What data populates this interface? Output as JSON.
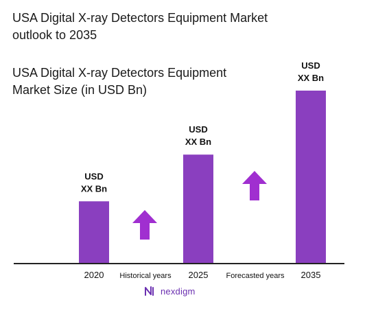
{
  "title": "USA Digital X-ray Detectors Equipment Market\noutlook to 2035",
  "subtitle": "USA Digital X-ray Detectors Equipment\nMarket Size (in USD Bn)",
  "colors": {
    "bar": "#8a3fbf",
    "arrow": "#a02fd0",
    "axis": "#222222",
    "brand": "#6a2fb0"
  },
  "periods": {
    "historical": "Historical years",
    "forecast": "Forecasted years"
  },
  "brand": {
    "name": "nexdigm",
    "logo_icon": "nexdigm-logo-icon"
  },
  "chart_data": {
    "type": "bar",
    "categories": [
      "2020",
      "2025",
      "2035"
    ],
    "values": [
      0.36,
      0.63,
      1.0
    ],
    "value_labels": [
      "USD\nXX Bn",
      "USD\nXX Bn",
      "USD\nXX Bn"
    ],
    "ylim": [
      0,
      1.0
    ],
    "grid": false,
    "legend": "none",
    "annotations": [
      "Historical years",
      "Forecasted years"
    ]
  }
}
